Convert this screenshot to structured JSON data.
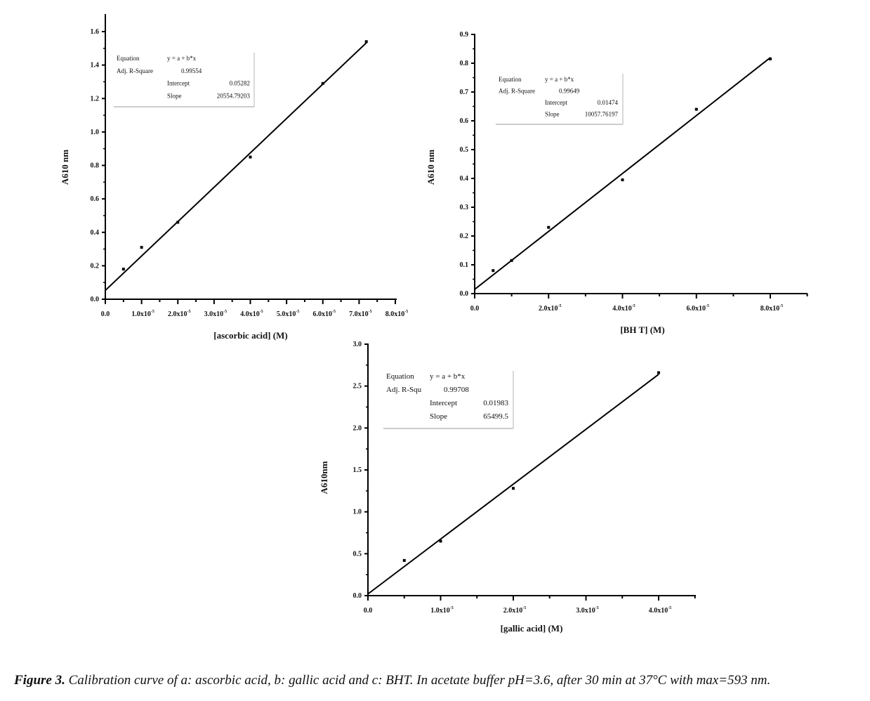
{
  "caption": {
    "label": "Figure 3.",
    "text": "Calibration curve of a: ascorbic acid, b: gallic acid and c: BHT. In acetate buffer pH=3.6, after 30 min at 37°C with max=593 nm."
  },
  "chart_data": [
    {
      "type": "scatter",
      "title": "",
      "xlabel": "[ascorbic acid] (M)",
      "ylabel": "A610 nm",
      "xlim": [
        0,
        8e-05
      ],
      "ylim": [
        0,
        1.6
      ],
      "xticks": [
        "0.0",
        "1.0x10-5",
        "2.0x10-5",
        "3.0x10-5",
        "4.0x10-5",
        "5.0x10-5",
        "6.0x10-5",
        "7.0x10-5",
        "8.0x10-5"
      ],
      "yticks": [
        "0.0",
        "0.2",
        "0.4",
        "0.6",
        "0.8",
        "1.0",
        "1.2",
        "1.4",
        "1.6"
      ],
      "x": [
        5e-06,
        1e-05,
        2e-05,
        4e-05,
        6e-05,
        7.2e-05
      ],
      "y": [
        0.18,
        0.31,
        0.46,
        0.85,
        1.29,
        1.54
      ],
      "fit": {
        "intercept": 0.05282,
        "slope": 20554.79203
      },
      "legend": {
        "equation_label": "Equation",
        "equation": "y = a + b*x",
        "r2_label": "Adj. R-Square",
        "r2": "0.99554",
        "intercept_label": "Intercept",
        "intercept": "0.05282",
        "slope_label": "Slope",
        "slope": "20554.79203"
      }
    },
    {
      "type": "scatter",
      "title": "",
      "xlabel": "[BH T] (M)",
      "ylabel": "A610 nm",
      "xlim": [
        0,
        9e-05
      ],
      "ylim": [
        0,
        0.9
      ],
      "xticks": [
        "0.0",
        "2.0x10-5",
        "4.0x10-5",
        "6.0x10-5",
        "8.0x10-5"
      ],
      "yticks": [
        "0.0",
        "0.1",
        "0.2",
        "0.3",
        "0.4",
        "0.5",
        "0.6",
        "0.7",
        "0.8",
        "0.9"
      ],
      "x": [
        5e-06,
        1e-05,
        2e-05,
        4e-05,
        6e-05,
        8e-05
      ],
      "y": [
        0.08,
        0.115,
        0.23,
        0.395,
        0.64,
        0.815
      ],
      "fit": {
        "intercept": 0.01474,
        "slope": 10057.76197
      },
      "legend": {
        "equation_label": "Equation",
        "equation": "y = a + b*x",
        "r2_label": "Adj. R-Square",
        "r2": "0.99649",
        "intercept_label": "Intercept",
        "intercept": "0.01474",
        "slope_label": "Slope",
        "slope": "10057.76197"
      }
    },
    {
      "type": "scatter",
      "title": "",
      "xlabel": "[gallic acid] (M)",
      "ylabel": "A610nm",
      "xlim": [
        0,
        4.5e-05
      ],
      "ylim": [
        0,
        3.0
      ],
      "xticks": [
        "0.0",
        "1.0x10-5",
        "2.0x10-5",
        "3.0x10-5",
        "4.0x10-5"
      ],
      "yticks": [
        "0.0",
        "0.5",
        "1.0",
        "1.5",
        "2.0",
        "2.5",
        "3.0"
      ],
      "x": [
        5e-06,
        1e-05,
        2e-05,
        4e-05
      ],
      "y": [
        0.42,
        0.65,
        1.28,
        2.66
      ],
      "fit": {
        "intercept": 0.01983,
        "slope": 65499.5
      },
      "legend": {
        "equation_label": "Equation",
        "equation": "y = a + b*x",
        "r2_label": "Adj. R-Squ",
        "r2": "0.99708",
        "intercept_label": "Intercept",
        "intercept": "0.01983",
        "slope_label": "Slope",
        "slope": "65499.5"
      }
    }
  ]
}
